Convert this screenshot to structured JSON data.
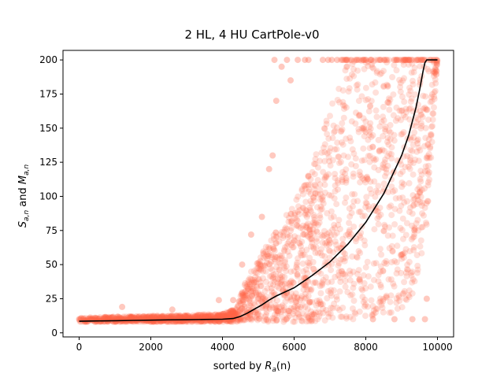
{
  "chart_data": {
    "type": "scatter",
    "title": "2 HL, 4 HU CartPole-v0",
    "xlabel": {
      "prefix": "sorted by ",
      "symbol": "R",
      "sub": "a",
      "suffix": "(n)"
    },
    "ylabel": {
      "s_symbol": "S",
      "s_sub": "a,n",
      "joiner": " and ",
      "m_symbol": "M",
      "m_sub": "a,n"
    },
    "xlim": [
      -450,
      10450
    ],
    "ylim": [
      -3,
      207
    ],
    "x_ticks": [
      0,
      2000,
      4000,
      6000,
      8000,
      10000
    ],
    "x_tick_labels": [
      "0",
      "2000",
      "4000",
      "6000",
      "8000",
      "10000"
    ],
    "y_ticks": [
      0,
      25,
      50,
      75,
      100,
      125,
      150,
      175,
      200
    ],
    "y_tick_labels": [
      "0",
      "25",
      "50",
      "75",
      "100",
      "125",
      "150",
      "175",
      "200"
    ],
    "grid": false,
    "colors": {
      "scatter": "#ff6347",
      "line": "#000000"
    },
    "scatter_alpha": 0.2,
    "scatter_band": [
      {
        "x": 0,
        "lo": 8,
        "hi": 11
      },
      {
        "x": 1000,
        "lo": 8,
        "hi": 12
      },
      {
        "x": 2000,
        "lo": 8,
        "hi": 12.5
      },
      {
        "x": 3000,
        "lo": 8,
        "hi": 13
      },
      {
        "x": 4000,
        "lo": 8,
        "hi": 14
      },
      {
        "x": 4400,
        "lo": 8,
        "hi": 18
      },
      {
        "x": 4600,
        "lo": 8,
        "hi": 35
      },
      {
        "x": 5000,
        "lo": 8,
        "hi": 55
      },
      {
        "x": 5500,
        "lo": 8,
        "hi": 75
      },
      {
        "x": 6000,
        "lo": 8,
        "hi": 95
      },
      {
        "x": 6500,
        "lo": 8,
        "hi": 125
      },
      {
        "x": 7000,
        "lo": 9,
        "hi": 165
      },
      {
        "x": 7500,
        "lo": 10,
        "hi": 200
      },
      {
        "x": 8000,
        "lo": 10,
        "hi": 200
      },
      {
        "x": 8500,
        "lo": 12,
        "hi": 200
      },
      {
        "x": 9000,
        "lo": 18,
        "hi": 200
      },
      {
        "x": 9400,
        "lo": 30,
        "hi": 200
      },
      {
        "x": 9700,
        "lo": 80,
        "hi": 200
      },
      {
        "x": 10000,
        "lo": 200,
        "hi": 200
      }
    ],
    "scatter_outliers": [
      {
        "x": 0,
        "y": 10
      },
      {
        "x": 1200,
        "y": 19
      },
      {
        "x": 2600,
        "y": 17
      },
      {
        "x": 3900,
        "y": 24
      },
      {
        "x": 4300,
        "y": 24
      },
      {
        "x": 4550,
        "y": 50
      },
      {
        "x": 4800,
        "y": 72
      },
      {
        "x": 5100,
        "y": 85
      },
      {
        "x": 5300,
        "y": 120
      },
      {
        "x": 5400,
        "y": 130
      },
      {
        "x": 5450,
        "y": 200
      },
      {
        "x": 5500,
        "y": 170
      },
      {
        "x": 5650,
        "y": 195
      },
      {
        "x": 5800,
        "y": 200
      },
      {
        "x": 5900,
        "y": 185
      },
      {
        "x": 6100,
        "y": 200
      },
      {
        "x": 6300,
        "y": 200
      },
      {
        "x": 6400,
        "y": 200
      },
      {
        "x": 6800,
        "y": 200
      },
      {
        "x": 6950,
        "y": 200
      },
      {
        "x": 7050,
        "y": 200
      },
      {
        "x": 7200,
        "y": 200
      },
      {
        "x": 8200,
        "y": 10
      },
      {
        "x": 8800,
        "y": 10
      },
      {
        "x": 9300,
        "y": 10
      },
      {
        "x": 9650,
        "y": 10
      },
      {
        "x": 9700,
        "y": 25
      }
    ],
    "series": [
      {
        "x": [
          0,
          500,
          1000,
          1500,
          2000,
          2500,
          3000,
          3500,
          4000,
          4300,
          4500,
          4700,
          4900,
          5100,
          5300,
          5500,
          6000,
          6500,
          7000,
          7500,
          8000,
          8500,
          9000,
          9200,
          9400,
          9500,
          9600,
          9650,
          9700,
          9800,
          10000
        ],
        "y": [
          8.5,
          8.7,
          8.9,
          9.1,
          9.3,
          9.5,
          9.6,
          9.8,
          10,
          10.5,
          12,
          14.5,
          17.5,
          20.5,
          24,
          27,
          33,
          42,
          52,
          65,
          81,
          102,
          130,
          145,
          165,
          178,
          192,
          198,
          200,
          200,
          200
        ]
      }
    ]
  }
}
